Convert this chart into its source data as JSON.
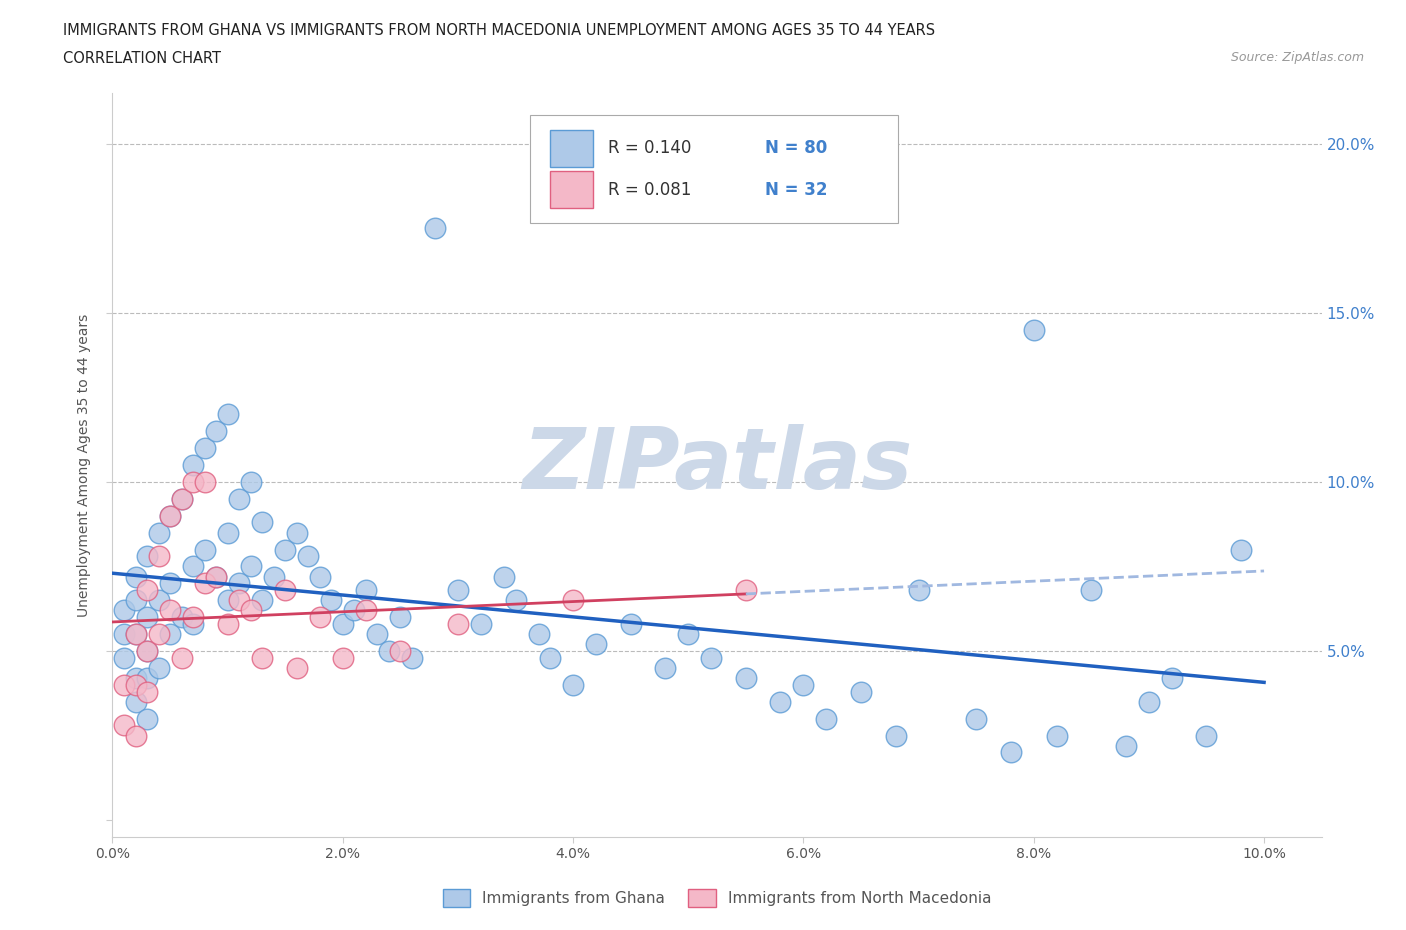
{
  "title_line1": "IMMIGRANTS FROM GHANA VS IMMIGRANTS FROM NORTH MACEDONIA UNEMPLOYMENT AMONG AGES 35 TO 44 YEARS",
  "title_line2": "CORRELATION CHART",
  "source": "Source: ZipAtlas.com",
  "ylabel": "Unemployment Among Ages 35 to 44 years",
  "xlim": [
    0.0,
    0.105
  ],
  "ylim": [
    -0.005,
    0.215
  ],
  "ghana_color": "#aec9e8",
  "ghana_edge": "#5b9bd5",
  "macedonia_color": "#f4b8c8",
  "macedonia_edge": "#e06080",
  "ghana_R": 0.14,
  "ghana_N": 80,
  "macedonia_R": 0.081,
  "macedonia_N": 32,
  "ghana_trend_color": "#2060c0",
  "ghana_trend_dash_color": "#a0b8e0",
  "macedonia_trend_color": "#d04060",
  "watermark": "ZIPatlas",
  "watermark_color": "#ccd8e8",
  "legend_label1": "Immigrants from Ghana",
  "legend_label2": "Immigrants from North Macedonia",
  "ghana_x": [
    0.001,
    0.001,
    0.001,
    0.002,
    0.002,
    0.002,
    0.002,
    0.002,
    0.003,
    0.003,
    0.003,
    0.003,
    0.003,
    0.004,
    0.004,
    0.004,
    0.005,
    0.005,
    0.005,
    0.006,
    0.006,
    0.007,
    0.007,
    0.007,
    0.008,
    0.008,
    0.009,
    0.009,
    0.01,
    0.01,
    0.01,
    0.011,
    0.011,
    0.012,
    0.012,
    0.013,
    0.013,
    0.014,
    0.015,
    0.016,
    0.017,
    0.018,
    0.019,
    0.02,
    0.021,
    0.022,
    0.023,
    0.024,
    0.025,
    0.026,
    0.028,
    0.03,
    0.032,
    0.034,
    0.035,
    0.037,
    0.038,
    0.04,
    0.042,
    0.045,
    0.048,
    0.05,
    0.052,
    0.055,
    0.058,
    0.06,
    0.062,
    0.065,
    0.068,
    0.07,
    0.075,
    0.078,
    0.08,
    0.082,
    0.085,
    0.088,
    0.09,
    0.092,
    0.095,
    0.098
  ],
  "ghana_y": [
    0.055,
    0.062,
    0.048,
    0.072,
    0.065,
    0.055,
    0.042,
    0.035,
    0.078,
    0.06,
    0.05,
    0.042,
    0.03,
    0.085,
    0.065,
    0.045,
    0.09,
    0.07,
    0.055,
    0.095,
    0.06,
    0.105,
    0.075,
    0.058,
    0.11,
    0.08,
    0.115,
    0.072,
    0.12,
    0.085,
    0.065,
    0.095,
    0.07,
    0.1,
    0.075,
    0.088,
    0.065,
    0.072,
    0.08,
    0.085,
    0.078,
    0.072,
    0.065,
    0.058,
    0.062,
    0.068,
    0.055,
    0.05,
    0.06,
    0.048,
    0.175,
    0.068,
    0.058,
    0.072,
    0.065,
    0.055,
    0.048,
    0.04,
    0.052,
    0.058,
    0.045,
    0.055,
    0.048,
    0.042,
    0.035,
    0.04,
    0.03,
    0.038,
    0.025,
    0.068,
    0.03,
    0.02,
    0.145,
    0.025,
    0.068,
    0.022,
    0.035,
    0.042,
    0.025,
    0.08
  ],
  "macedonia_x": [
    0.001,
    0.001,
    0.002,
    0.002,
    0.002,
    0.003,
    0.003,
    0.003,
    0.004,
    0.004,
    0.005,
    0.005,
    0.006,
    0.006,
    0.007,
    0.007,
    0.008,
    0.008,
    0.009,
    0.01,
    0.011,
    0.012,
    0.013,
    0.015,
    0.016,
    0.018,
    0.02,
    0.022,
    0.025,
    0.03,
    0.04,
    0.055
  ],
  "macedonia_y": [
    0.04,
    0.028,
    0.055,
    0.04,
    0.025,
    0.068,
    0.05,
    0.038,
    0.078,
    0.055,
    0.09,
    0.062,
    0.095,
    0.048,
    0.1,
    0.06,
    0.1,
    0.07,
    0.072,
    0.058,
    0.065,
    0.062,
    0.048,
    0.068,
    0.045,
    0.06,
    0.048,
    0.062,
    0.05,
    0.058,
    0.065,
    0.068
  ]
}
